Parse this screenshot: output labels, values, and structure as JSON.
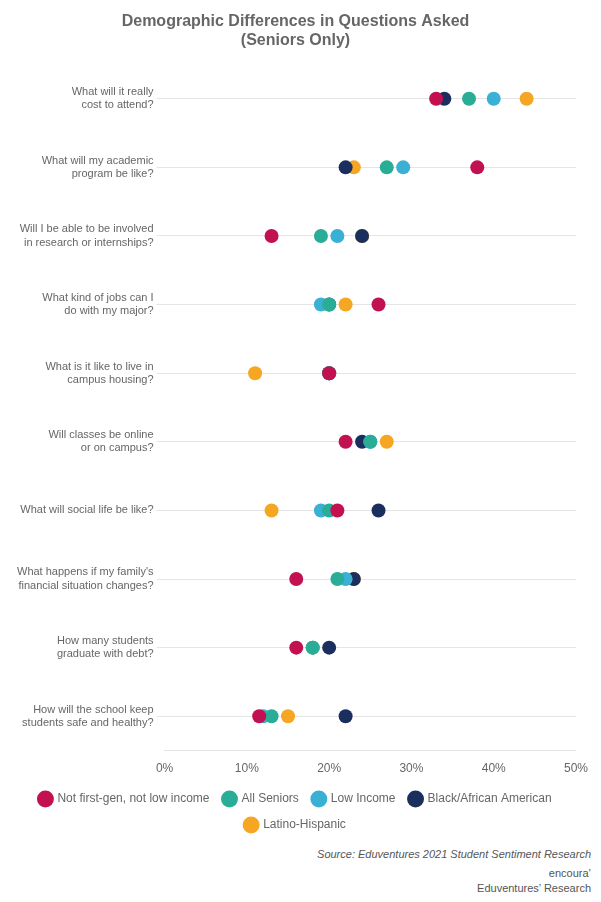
{
  "chart_data": {
    "type": "scatter",
    "title": "Demographic Differences in Questions Asked\n(Seniors Only)",
    "categories": [
      "What will it really\ncost to attend?",
      "What will my academic\nprogram be like?",
      "Will I be able to be involved\nin research or internships?",
      "What kind of jobs can I\ndo with my major?",
      "What is it like to live in\ncampus housing?",
      "Will classes be online\nor on campus?",
      "What will social life be like?",
      "What happens if my family's\nfinancial situation changes?",
      "How many students\ngraduate with debt?",
      "How will the school keep\nstudents safe and healthy?"
    ],
    "series": [
      {
        "name": "Not first-gen, not low income",
        "color": "#c21050",
        "values": [
          0.33,
          0.38,
          0.13,
          0.26,
          0.2,
          0.22,
          0.21,
          0.16,
          0.16,
          0.115
        ]
      },
      {
        "name": "All Seniors",
        "color": "#2aad96",
        "values": [
          0.37,
          0.27,
          0.19,
          0.2,
          0.2,
          0.25,
          0.2,
          0.21,
          0.18,
          0.13
        ]
      },
      {
        "name": "Low Income",
        "color": "#3ab0d4",
        "values": [
          0.4,
          0.29,
          0.21,
          0.19,
          0.2,
          0.25,
          0.19,
          0.22,
          0.18,
          0.12
        ]
      },
      {
        "name": "Black/African American",
        "color": "#1b2f5e",
        "values": [
          0.34,
          0.22,
          0.24,
          0.2,
          0.2,
          0.24,
          0.26,
          0.23,
          0.2,
          0.22
        ]
      },
      {
        "name": "Latino-Hispanic",
        "color": "#f5a623",
        "values": [
          0.44,
          0.23,
          0.24,
          0.22,
          0.11,
          0.27,
          0.13,
          0.23,
          0.18,
          0.15
        ]
      }
    ],
    "xlim": [
      0.0,
      0.5
    ],
    "xticks": [
      {
        "value": 0.0,
        "label": "0%"
      },
      {
        "value": 0.1,
        "label": "10%"
      },
      {
        "value": 0.2,
        "label": "20%"
      },
      {
        "value": 0.3,
        "label": "30%"
      },
      {
        "value": 0.4,
        "label": "40%"
      },
      {
        "value": 0.5,
        "label": "50%"
      }
    ],
    "grid": true,
    "legend": "bottom",
    "annotations": [
      "Source: Eduventures 2021 Student Sentiment Research",
      "encouraʼ",
      "Eduventures’ Research"
    ]
  }
}
